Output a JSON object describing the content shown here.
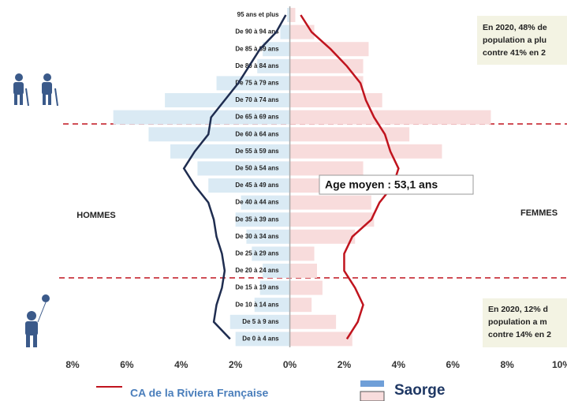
{
  "chart_data": {
    "type": "pyramid",
    "categories": [
      "95 ans et plus",
      "De 90 à 94 ans",
      "De 85 à 89 ans",
      "De 80 à 84 ans",
      "De 75 à 79 ans",
      "De 70 à 74 ans",
      "De 65 à 69 ans",
      "De 60 à 64 ans",
      "De 55 à 59 ans",
      "De 50 à 54 ans",
      "De 45 à 49 ans",
      "De 40 à 44 ans",
      "De 35 à 39 ans",
      "De 30 à 34 ans",
      "De 25 à 29 ans",
      "De 20 à 24 ans",
      "De 15 à 19 ans",
      "De 10 à 14 ans",
      "De 5 à 9 ans",
      "De 0 à 4 ans"
    ],
    "bars": {
      "name": "Saorge",
      "men_color": "#daeaf4",
      "women_color": "#f8dcdc",
      "legend_men_color": "#6f9fd8",
      "men": [
        0.1,
        0.35,
        1.0,
        1.2,
        2.7,
        4.6,
        6.5,
        5.2,
        4.4,
        3.4,
        3.0,
        1.8,
        2.0,
        1.6,
        1.4,
        1.0,
        1.1,
        1.3,
        2.2,
        2.0
      ],
      "women": [
        0.2,
        0.9,
        2.9,
        2.7,
        2.7,
        3.4,
        7.4,
        4.4,
        5.6,
        2.7,
        2.0,
        3.0,
        3.1,
        2.4,
        0.9,
        1.0,
        1.2,
        0.8,
        1.7,
        2.3
      ]
    },
    "lines": {
      "name": "CA de la Riviera Française",
      "men_color": "#1f2d50",
      "women_color": "#c0141e",
      "men": [
        0.15,
        0.5,
        1.1,
        1.5,
        1.9,
        2.4,
        2.9,
        3.0,
        3.5,
        3.9,
        3.5,
        3.0,
        2.8,
        2.7,
        2.5,
        2.4,
        2.5,
        2.7,
        2.8,
        2.2
      ],
      "women": [
        0.4,
        0.8,
        1.5,
        2.1,
        2.6,
        2.8,
        3.1,
        3.5,
        3.7,
        4.0,
        3.8,
        3.3,
        3.0,
        2.3,
        2.0,
        2.0,
        2.4,
        2.7,
        2.5,
        2.1
      ]
    },
    "xlim": [
      -8,
      10
    ],
    "xticks": [
      {
        "value": -8,
        "label": "8%"
      },
      {
        "value": -6,
        "label": "6%"
      },
      {
        "value": -4,
        "label": "4%"
      },
      {
        "value": -2,
        "label": "2%"
      },
      {
        "value": 0,
        "label": "0%"
      },
      {
        "value": 2,
        "label": "2%"
      },
      {
        "value": 4,
        "label": "4%"
      },
      {
        "value": 6,
        "label": "6%"
      },
      {
        "value": 8,
        "label": "8%"
      },
      {
        "value": 10,
        "label": "10%"
      }
    ],
    "left_label": "HOMMES",
    "right_label": "FEMMES",
    "mean_label": "Age moyen : 53,1 ans",
    "note_top": [
      "En 2020, 48% de",
      "population a plu",
      "contre 41% en 2"
    ],
    "note_bottom": [
      "En 2020, 12% d",
      "population a m",
      "contre 14% en 2"
    ]
  }
}
